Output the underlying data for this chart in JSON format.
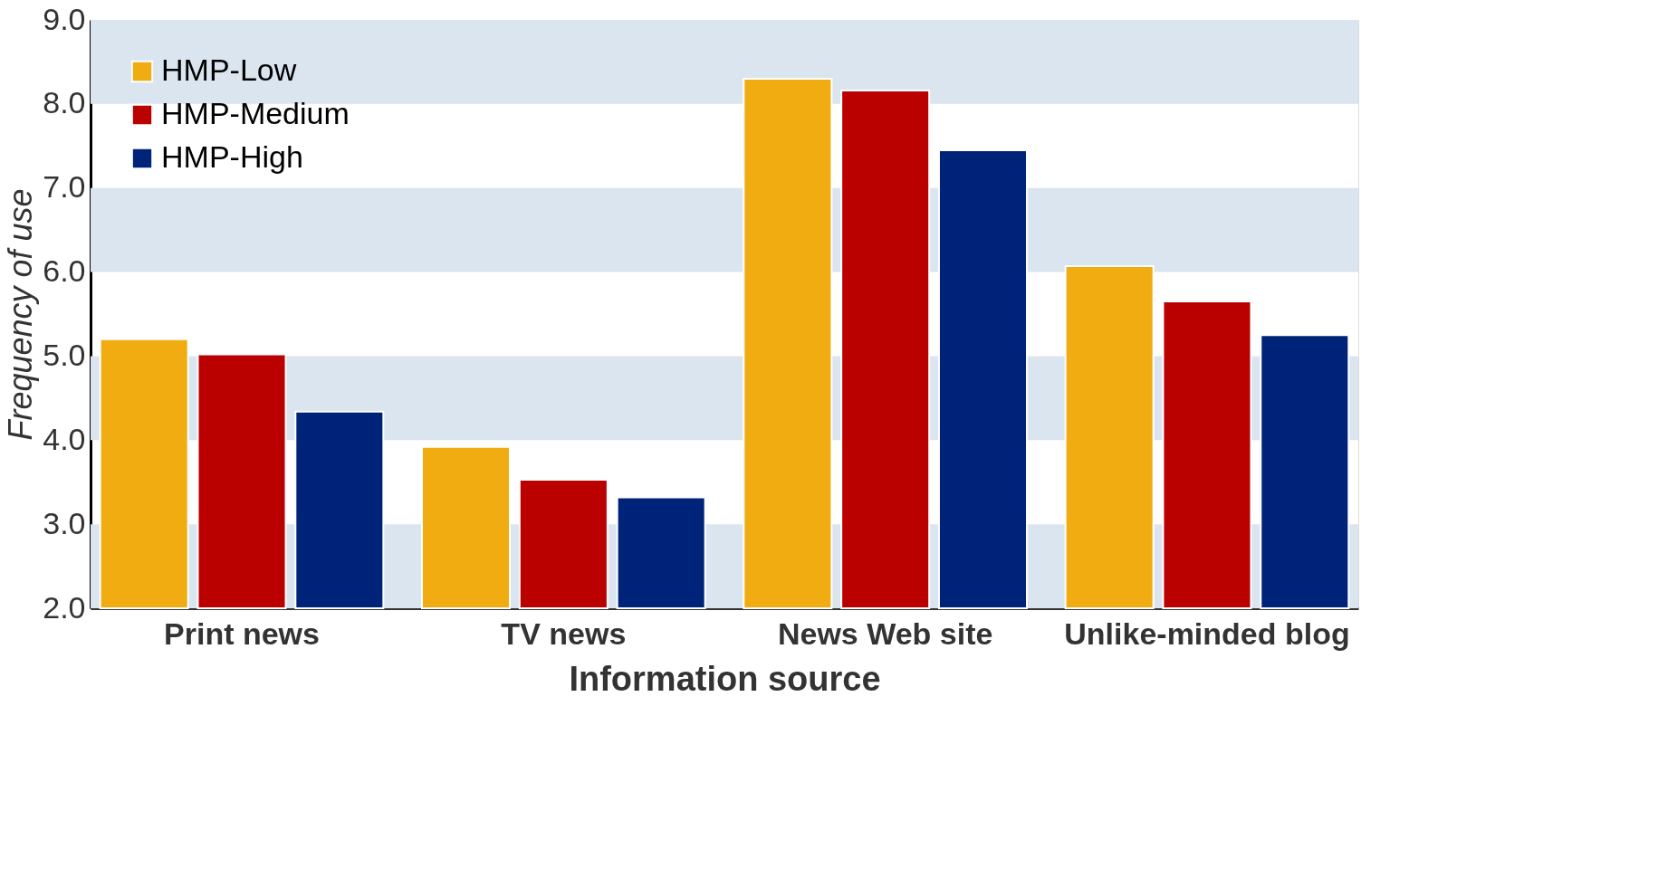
{
  "chart_data": {
    "type": "bar",
    "xlabel": "Information source",
    "ylabel": "Frequency of use",
    "categories": [
      "Print news",
      "TV news",
      "News Web site",
      "Unlike-minded blog"
    ],
    "series": [
      {
        "name": "HMP-Low",
        "color": "#f0ac10",
        "values": [
          5.2,
          3.92,
          8.3,
          6.07
        ]
      },
      {
        "name": "HMP-Medium",
        "color": "#bb0000",
        "values": [
          5.02,
          3.53,
          8.16,
          5.65
        ]
      },
      {
        "name": "HMP-High",
        "color": "#00237a",
        "values": [
          4.34,
          3.32,
          7.45,
          5.25
        ]
      }
    ],
    "ylim": [
      2.0,
      9.0
    ],
    "yticks": [
      {
        "value": 2,
        "label": "2.0"
      },
      {
        "value": 3,
        "label": "3.0"
      },
      {
        "value": 4,
        "label": "4.0"
      },
      {
        "value": 5,
        "label": "5.0"
      },
      {
        "value": 6,
        "label": "6.0"
      },
      {
        "value": 7,
        "label": "7.0"
      },
      {
        "value": 8,
        "label": "8.0"
      },
      {
        "value": 9,
        "label": "9.0"
      }
    ],
    "bands": [
      {
        "axis": "y",
        "from": 2,
        "to": 3,
        "color": "#dae5f0"
      },
      {
        "axis": "y",
        "from": 4,
        "to": 5,
        "color": "#dae5f0"
      },
      {
        "axis": "y",
        "from": 6,
        "to": 7,
        "color": "#dae5f0"
      },
      {
        "axis": "y",
        "from": 8,
        "to": 9,
        "color": "#dae5f0"
      }
    ],
    "legend": "top left",
    "grid": false
  }
}
